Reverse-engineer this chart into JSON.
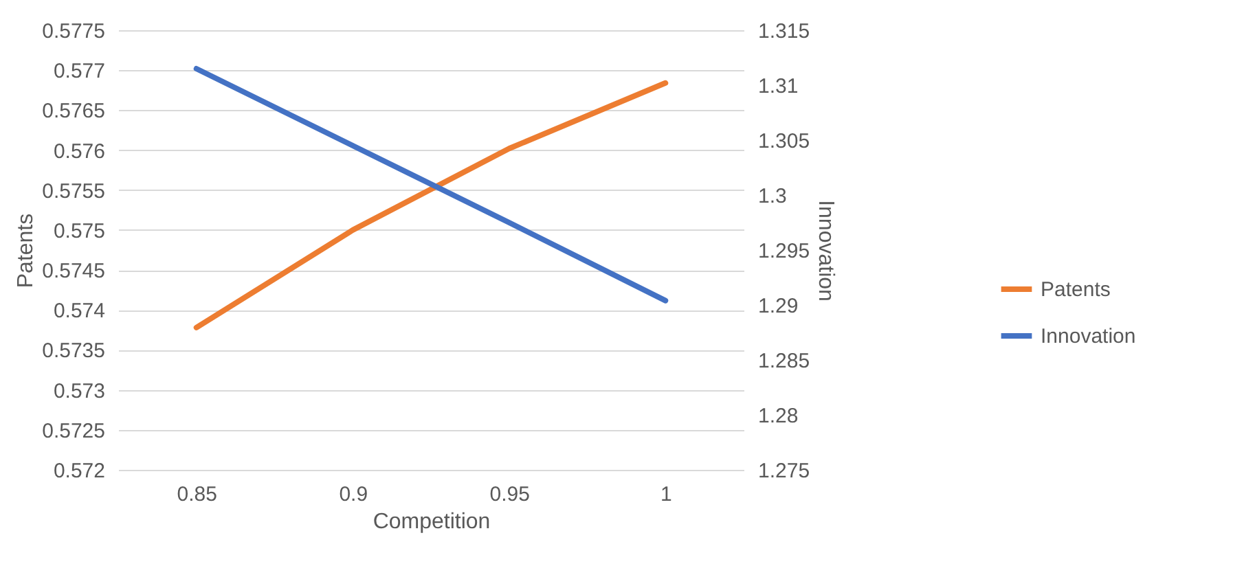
{
  "chart_data": {
    "type": "line",
    "xlabel": "Competition",
    "ylabel": "Patents",
    "y2label": "Innovation",
    "x": [
      0.85,
      0.9,
      0.95,
      1
    ],
    "series": [
      {
        "name": "Patents",
        "color": "#ed7d31",
        "values": [
          0.57378,
          0.575,
          0.57602,
          0.57684
        ]
      },
      {
        "name": "Innovation",
        "color": "#4472c4",
        "axis": "y2",
        "values": [
          1.3115,
          1.3045,
          1.2975,
          1.2904
        ]
      }
    ],
    "xlim": [
      0.825,
      1.025
    ],
    "xticks": [
      0.85,
      0.9,
      0.95,
      1
    ],
    "ylim": [
      0.572,
      0.5775
    ],
    "yticks": [
      0.572,
      0.5725,
      0.573,
      0.5735,
      0.574,
      0.5745,
      0.575,
      0.5755,
      0.576,
      0.5765,
      0.577,
      0.5775
    ],
    "y2lim": [
      1.275,
      1.315
    ],
    "y2ticks": [
      1.275,
      1.28,
      1.285,
      1.29,
      1.295,
      1.3,
      1.305,
      1.31,
      1.315
    ],
    "grid": "y",
    "legend": "right",
    "marker": "none",
    "line_style": "solid"
  }
}
